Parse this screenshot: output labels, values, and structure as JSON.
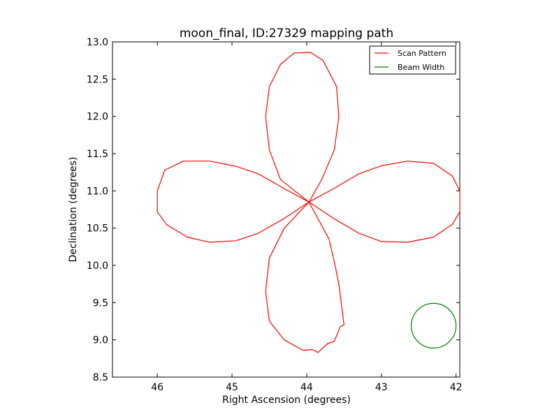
{
  "chart_data": {
    "type": "line",
    "title": "moon_final, ID:27329 mapping path",
    "xlabel": "Right Ascension (degrees)",
    "ylabel": "Declination (degrees)",
    "xlim": [
      46.6,
      41.95
    ],
    "ylim": [
      8.5,
      13.0
    ],
    "x_inverted": true,
    "xticks": [
      46,
      45,
      44,
      43,
      42
    ],
    "xtick_labels": [
      "46",
      "45",
      "44",
      "43",
      "42"
    ],
    "yticks": [
      8.5,
      9.0,
      9.5,
      10.0,
      10.5,
      11.0,
      11.5,
      12.0,
      12.5,
      13.0
    ],
    "ytick_labels": [
      "8.5",
      "9.0",
      "9.5",
      "10.0",
      "10.5",
      "11.0",
      "11.5",
      "12.0",
      "12.5",
      "13.0"
    ],
    "grid": false,
    "legend_position": "top-right",
    "series": [
      {
        "name": "Scan Pattern",
        "color": "#ff0000",
        "shape": "four-lobe rosette",
        "center": [
          43.97,
          10.85
        ],
        "points": [
          [
            43.97,
            10.85
          ],
          [
            44.3,
            11.03
          ],
          [
            44.65,
            11.23
          ],
          [
            44.95,
            11.33
          ],
          [
            45.3,
            11.4
          ],
          [
            45.65,
            11.4
          ],
          [
            45.9,
            11.28
          ],
          [
            46.0,
            11.0
          ],
          [
            46.0,
            10.85
          ],
          [
            46.0,
            10.72
          ],
          [
            45.88,
            10.55
          ],
          [
            45.6,
            10.38
          ],
          [
            45.3,
            10.31
          ],
          [
            44.95,
            10.33
          ],
          [
            44.65,
            10.43
          ],
          [
            44.3,
            10.63
          ],
          [
            43.97,
            10.85
          ],
          [
            43.64,
            11.03
          ],
          [
            43.3,
            11.23
          ],
          [
            42.99,
            11.34
          ],
          [
            42.65,
            11.4
          ],
          [
            42.3,
            11.37
          ],
          [
            42.05,
            11.2
          ],
          [
            41.95,
            11.0
          ],
          [
            41.95,
            10.72
          ],
          [
            42.05,
            10.55
          ],
          [
            42.3,
            10.38
          ],
          [
            42.65,
            10.31
          ],
          [
            43.0,
            10.32
          ],
          [
            43.3,
            10.43
          ],
          [
            43.64,
            10.63
          ],
          [
            43.97,
            10.85
          ],
          [
            43.8,
            11.15
          ],
          [
            43.63,
            11.55
          ],
          [
            43.57,
            12.0
          ],
          [
            43.6,
            12.4
          ],
          [
            43.78,
            12.75
          ],
          [
            43.95,
            12.86
          ],
          [
            44.17,
            12.85
          ],
          [
            44.35,
            12.7
          ],
          [
            44.5,
            12.4
          ],
          [
            44.55,
            12.0
          ],
          [
            44.5,
            11.55
          ],
          [
            44.35,
            11.15
          ],
          [
            43.97,
            10.85
          ],
          [
            44.3,
            10.5
          ],
          [
            44.5,
            10.1
          ],
          [
            44.55,
            9.65
          ],
          [
            44.5,
            9.25
          ],
          [
            44.3,
            9.0
          ],
          [
            44.05,
            8.86
          ],
          [
            43.92,
            8.87
          ],
          [
            43.85,
            8.83
          ],
          [
            43.72,
            8.95
          ],
          [
            43.63,
            8.98
          ],
          [
            43.55,
            9.18
          ],
          [
            43.5,
            9.2
          ],
          [
            43.57,
            9.75
          ],
          [
            43.62,
            10.0
          ],
          [
            43.7,
            10.35
          ],
          [
            43.97,
            10.85
          ]
        ]
      },
      {
        "name": "Beam Width",
        "color": "#008000",
        "shape": "circle",
        "center": [
          42.3,
          9.19
        ],
        "radius_deg": 0.3
      }
    ]
  }
}
